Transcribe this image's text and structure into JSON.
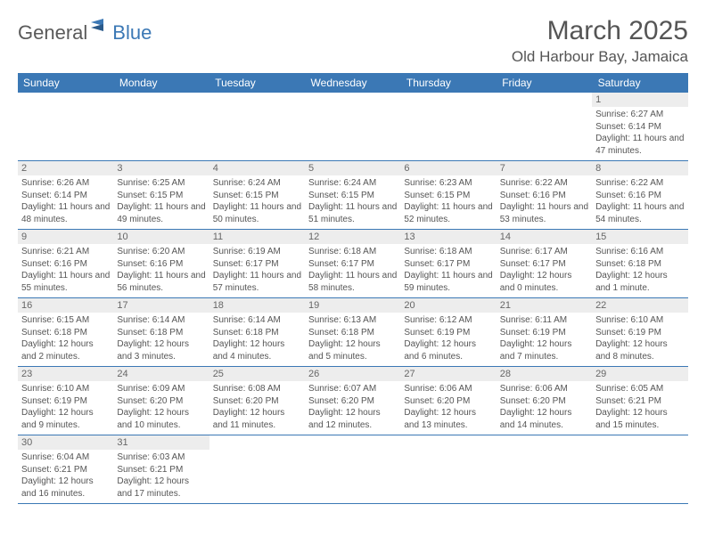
{
  "logo": {
    "part1": "General",
    "part2": "Blue"
  },
  "title": "March 2025",
  "location": "Old Harbour Bay, Jamaica",
  "colors": {
    "header_bg": "#3b78b5",
    "header_text": "#ffffff",
    "body_text": "#555555",
    "daynum_bg": "#ededed",
    "border": "#3b78b5"
  },
  "weekdays": [
    "Sunday",
    "Monday",
    "Tuesday",
    "Wednesday",
    "Thursday",
    "Friday",
    "Saturday"
  ],
  "weeks": [
    [
      null,
      null,
      null,
      null,
      null,
      null,
      {
        "day": "1",
        "sunrise": "Sunrise: 6:27 AM",
        "sunset": "Sunset: 6:14 PM",
        "daylight": "Daylight: 11 hours and 47 minutes."
      }
    ],
    [
      {
        "day": "2",
        "sunrise": "Sunrise: 6:26 AM",
        "sunset": "Sunset: 6:14 PM",
        "daylight": "Daylight: 11 hours and 48 minutes."
      },
      {
        "day": "3",
        "sunrise": "Sunrise: 6:25 AM",
        "sunset": "Sunset: 6:15 PM",
        "daylight": "Daylight: 11 hours and 49 minutes."
      },
      {
        "day": "4",
        "sunrise": "Sunrise: 6:24 AM",
        "sunset": "Sunset: 6:15 PM",
        "daylight": "Daylight: 11 hours and 50 minutes."
      },
      {
        "day": "5",
        "sunrise": "Sunrise: 6:24 AM",
        "sunset": "Sunset: 6:15 PM",
        "daylight": "Daylight: 11 hours and 51 minutes."
      },
      {
        "day": "6",
        "sunrise": "Sunrise: 6:23 AM",
        "sunset": "Sunset: 6:15 PM",
        "daylight": "Daylight: 11 hours and 52 minutes."
      },
      {
        "day": "7",
        "sunrise": "Sunrise: 6:22 AM",
        "sunset": "Sunset: 6:16 PM",
        "daylight": "Daylight: 11 hours and 53 minutes."
      },
      {
        "day": "8",
        "sunrise": "Sunrise: 6:22 AM",
        "sunset": "Sunset: 6:16 PM",
        "daylight": "Daylight: 11 hours and 54 minutes."
      }
    ],
    [
      {
        "day": "9",
        "sunrise": "Sunrise: 6:21 AM",
        "sunset": "Sunset: 6:16 PM",
        "daylight": "Daylight: 11 hours and 55 minutes."
      },
      {
        "day": "10",
        "sunrise": "Sunrise: 6:20 AM",
        "sunset": "Sunset: 6:16 PM",
        "daylight": "Daylight: 11 hours and 56 minutes."
      },
      {
        "day": "11",
        "sunrise": "Sunrise: 6:19 AM",
        "sunset": "Sunset: 6:17 PM",
        "daylight": "Daylight: 11 hours and 57 minutes."
      },
      {
        "day": "12",
        "sunrise": "Sunrise: 6:18 AM",
        "sunset": "Sunset: 6:17 PM",
        "daylight": "Daylight: 11 hours and 58 minutes."
      },
      {
        "day": "13",
        "sunrise": "Sunrise: 6:18 AM",
        "sunset": "Sunset: 6:17 PM",
        "daylight": "Daylight: 11 hours and 59 minutes."
      },
      {
        "day": "14",
        "sunrise": "Sunrise: 6:17 AM",
        "sunset": "Sunset: 6:17 PM",
        "daylight": "Daylight: 12 hours and 0 minutes."
      },
      {
        "day": "15",
        "sunrise": "Sunrise: 6:16 AM",
        "sunset": "Sunset: 6:18 PM",
        "daylight": "Daylight: 12 hours and 1 minute."
      }
    ],
    [
      {
        "day": "16",
        "sunrise": "Sunrise: 6:15 AM",
        "sunset": "Sunset: 6:18 PM",
        "daylight": "Daylight: 12 hours and 2 minutes."
      },
      {
        "day": "17",
        "sunrise": "Sunrise: 6:14 AM",
        "sunset": "Sunset: 6:18 PM",
        "daylight": "Daylight: 12 hours and 3 minutes."
      },
      {
        "day": "18",
        "sunrise": "Sunrise: 6:14 AM",
        "sunset": "Sunset: 6:18 PM",
        "daylight": "Daylight: 12 hours and 4 minutes."
      },
      {
        "day": "19",
        "sunrise": "Sunrise: 6:13 AM",
        "sunset": "Sunset: 6:18 PM",
        "daylight": "Daylight: 12 hours and 5 minutes."
      },
      {
        "day": "20",
        "sunrise": "Sunrise: 6:12 AM",
        "sunset": "Sunset: 6:19 PM",
        "daylight": "Daylight: 12 hours and 6 minutes."
      },
      {
        "day": "21",
        "sunrise": "Sunrise: 6:11 AM",
        "sunset": "Sunset: 6:19 PM",
        "daylight": "Daylight: 12 hours and 7 minutes."
      },
      {
        "day": "22",
        "sunrise": "Sunrise: 6:10 AM",
        "sunset": "Sunset: 6:19 PM",
        "daylight": "Daylight: 12 hours and 8 minutes."
      }
    ],
    [
      {
        "day": "23",
        "sunrise": "Sunrise: 6:10 AM",
        "sunset": "Sunset: 6:19 PM",
        "daylight": "Daylight: 12 hours and 9 minutes."
      },
      {
        "day": "24",
        "sunrise": "Sunrise: 6:09 AM",
        "sunset": "Sunset: 6:20 PM",
        "daylight": "Daylight: 12 hours and 10 minutes."
      },
      {
        "day": "25",
        "sunrise": "Sunrise: 6:08 AM",
        "sunset": "Sunset: 6:20 PM",
        "daylight": "Daylight: 12 hours and 11 minutes."
      },
      {
        "day": "26",
        "sunrise": "Sunrise: 6:07 AM",
        "sunset": "Sunset: 6:20 PM",
        "daylight": "Daylight: 12 hours and 12 minutes."
      },
      {
        "day": "27",
        "sunrise": "Sunrise: 6:06 AM",
        "sunset": "Sunset: 6:20 PM",
        "daylight": "Daylight: 12 hours and 13 minutes."
      },
      {
        "day": "28",
        "sunrise": "Sunrise: 6:06 AM",
        "sunset": "Sunset: 6:20 PM",
        "daylight": "Daylight: 12 hours and 14 minutes."
      },
      {
        "day": "29",
        "sunrise": "Sunrise: 6:05 AM",
        "sunset": "Sunset: 6:21 PM",
        "daylight": "Daylight: 12 hours and 15 minutes."
      }
    ],
    [
      {
        "day": "30",
        "sunrise": "Sunrise: 6:04 AM",
        "sunset": "Sunset: 6:21 PM",
        "daylight": "Daylight: 12 hours and 16 minutes."
      },
      {
        "day": "31",
        "sunrise": "Sunrise: 6:03 AM",
        "sunset": "Sunset: 6:21 PM",
        "daylight": "Daylight: 12 hours and 17 minutes."
      },
      null,
      null,
      null,
      null,
      null
    ]
  ]
}
